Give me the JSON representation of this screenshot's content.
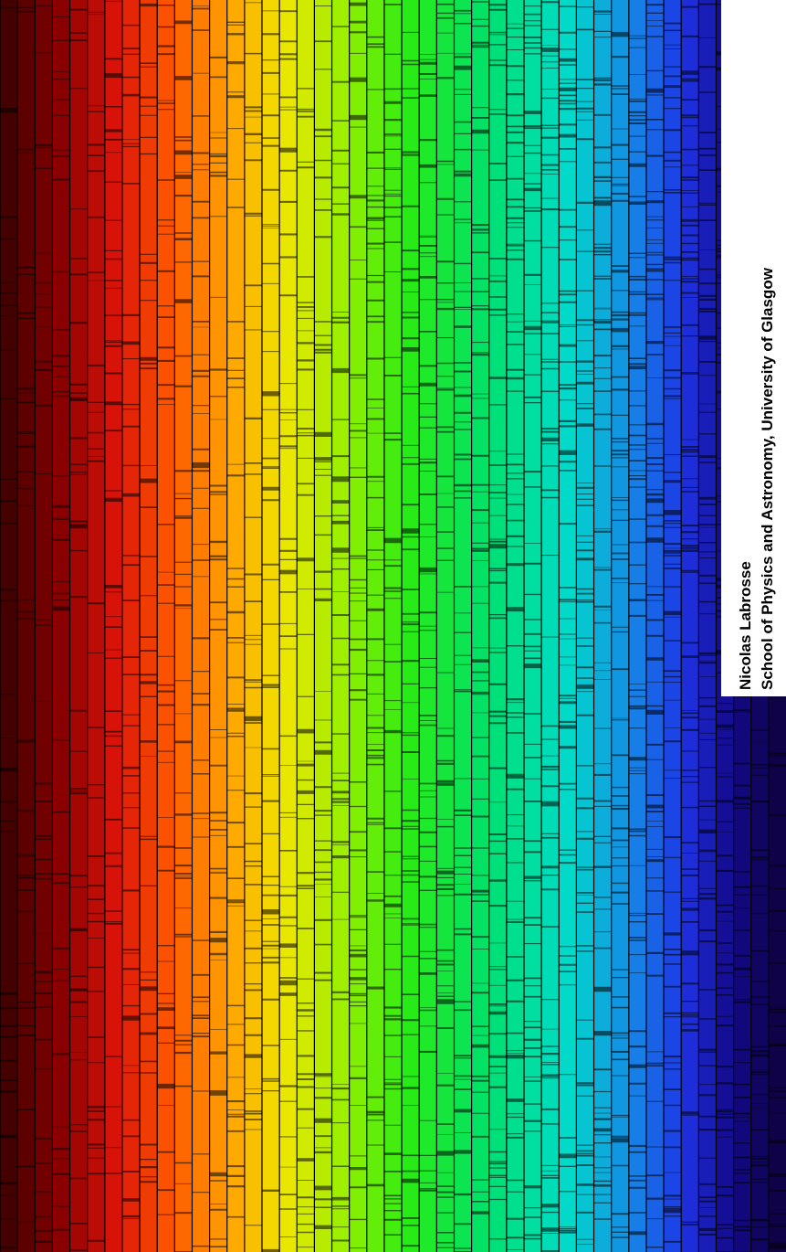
{
  "credit": {
    "author": "Nicolas Labrosse",
    "affiliation": "School of Physics and Astronomy, University of Glasgow"
  }
}
